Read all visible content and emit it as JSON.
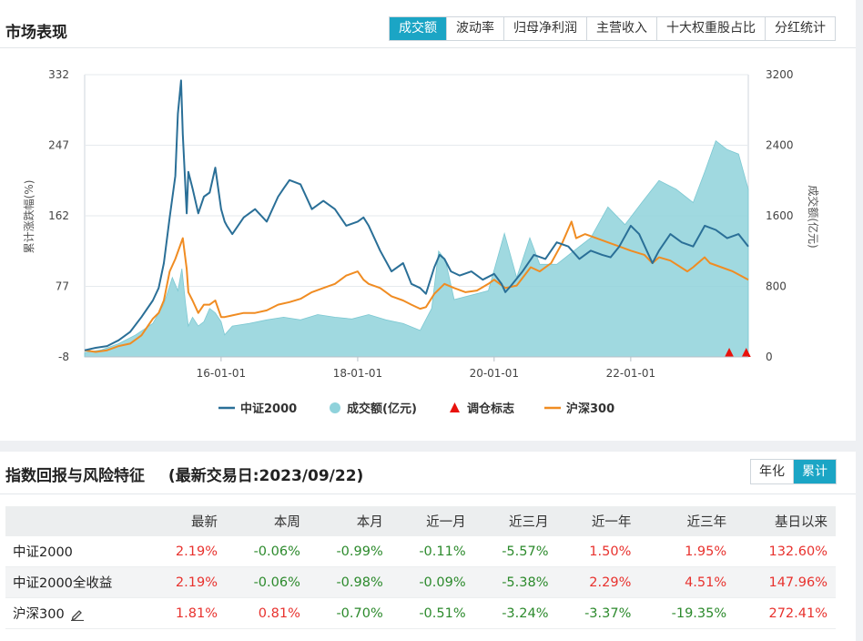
{
  "market": {
    "title": "市场表现",
    "tabs": [
      "成交额",
      "波动率",
      "归母净利润",
      "主营收入",
      "十大权重股占比",
      "分红统计"
    ],
    "active_tab": 0
  },
  "chart_data": {
    "type": "line",
    "xlabel": "",
    "ylabel_left": "累计涨跌幅(%)",
    "ylabel_right": "成交额(亿元)",
    "x_range": [
      "2014-01-01",
      "2023-09-22"
    ],
    "x_ticks": [
      "16-01-01",
      "18-01-01",
      "20-01-01",
      "22-01-01"
    ],
    "ylim_left": [
      -8,
      332
    ],
    "yticks_left": [
      -8,
      77,
      162,
      247,
      332
    ],
    "ylim_right": [
      0,
      3200
    ],
    "yticks_right": [
      0,
      800,
      1600,
      2400,
      3200
    ],
    "grid": true,
    "legend_position": "bottom",
    "legend": [
      "中证2000",
      "成交额(亿元)",
      "调仓标志",
      "沪深300"
    ],
    "colors": {
      "csi2000": "#2a6f97",
      "volume": "#8fd2db",
      "rebalance": "#e8120c",
      "hs300": "#f08c22"
    },
    "series": [
      {
        "name": "中证2000",
        "axis": "left",
        "x": [
          "2014-01-01",
          "2014-03-01",
          "2014-05-01",
          "2014-07-01",
          "2014-09-01",
          "2014-11-01",
          "2015-01-01",
          "2015-02-01",
          "2015-03-01",
          "2015-04-01",
          "2015-05-01",
          "2015-05-15",
          "2015-06-01",
          "2015-06-10",
          "2015-07-01",
          "2015-07-10",
          "2015-08-01",
          "2015-09-01",
          "2015-10-01",
          "2015-11-01",
          "2015-12-01",
          "2016-01-01",
          "2016-01-20",
          "2016-02-01",
          "2016-03-01",
          "2016-05-01",
          "2016-07-01",
          "2016-09-01",
          "2016-11-01",
          "2016-12-01",
          "2017-01-01",
          "2017-03-01",
          "2017-05-01",
          "2017-07-01",
          "2017-09-01",
          "2017-11-01",
          "2018-01-01",
          "2018-02-01",
          "2018-03-01",
          "2018-05-01",
          "2018-07-01",
          "2018-09-01",
          "2018-10-15",
          "2018-12-01",
          "2019-01-01",
          "2019-02-15",
          "2019-03-15",
          "2019-04-10",
          "2019-05-15",
          "2019-07-01",
          "2019-09-01",
          "2019-11-01",
          "2020-01-01",
          "2020-02-10",
          "2020-03-01",
          "2020-04-01",
          "2020-06-01",
          "2020-08-01",
          "2020-10-01",
          "2020-12-01",
          "2021-02-01",
          "2021-04-01",
          "2021-06-01",
          "2021-08-01",
          "2021-09-15",
          "2021-11-01",
          "2022-01-01",
          "2022-02-15",
          "2022-04-27",
          "2022-06-01",
          "2022-08-01",
          "2022-10-01",
          "2022-12-01",
          "2023-02-01",
          "2023-04-01",
          "2023-06-01",
          "2023-08-01",
          "2023-09-22"
        ],
        "values": [
          0,
          3,
          5,
          12,
          22,
          40,
          60,
          75,
          105,
          160,
          210,
          285,
          325,
          260,
          165,
          215,
          195,
          165,
          185,
          190,
          220,
          170,
          155,
          150,
          140,
          160,
          170,
          155,
          185,
          195,
          205,
          200,
          170,
          180,
          170,
          150,
          155,
          160,
          150,
          120,
          95,
          105,
          80,
          75,
          68,
          100,
          115,
          110,
          95,
          90,
          95,
          85,
          92,
          80,
          70,
          78,
          95,
          115,
          110,
          130,
          125,
          110,
          120,
          115,
          112,
          125,
          150,
          140,
          105,
          120,
          140,
          130,
          125,
          150,
          145,
          135,
          140,
          125
        ]
      },
      {
        "name": "沪深300",
        "axis": "left",
        "x": [
          "2014-01-01",
          "2014-03-01",
          "2014-05-01",
          "2014-07-01",
          "2014-09-01",
          "2014-11-01",
          "2015-01-01",
          "2015-02-01",
          "2015-03-01",
          "2015-04-01",
          "2015-05-01",
          "2015-06-10",
          "2015-07-01",
          "2015-07-10",
          "2015-08-01",
          "2015-09-01",
          "2015-10-01",
          "2015-11-01",
          "2015-12-01",
          "2016-01-01",
          "2016-01-20",
          "2016-03-01",
          "2016-05-01",
          "2016-07-01",
          "2016-09-01",
          "2016-11-01",
          "2017-01-01",
          "2017-03-01",
          "2017-05-01",
          "2017-07-01",
          "2017-09-01",
          "2017-11-01",
          "2018-01-01",
          "2018-02-01",
          "2018-03-01",
          "2018-05-01",
          "2018-07-01",
          "2018-09-01",
          "2018-10-15",
          "2018-12-01",
          "2019-01-01",
          "2019-02-15",
          "2019-04-10",
          "2019-06-01",
          "2019-08-01",
          "2019-10-01",
          "2019-12-01",
          "2020-01-01",
          "2020-03-01",
          "2020-05-01",
          "2020-07-15",
          "2020-09-01",
          "2020-11-01",
          "2021-01-01",
          "2021-02-18",
          "2021-03-15",
          "2021-05-01",
          "2021-07-01",
          "2021-09-01",
          "2021-11-01",
          "2022-01-01",
          "2022-03-15",
          "2022-04-27",
          "2022-06-01",
          "2022-08-01",
          "2022-10-31",
          "2022-12-01",
          "2023-01-31",
          "2023-03-01",
          "2023-05-01",
          "2023-07-01",
          "2023-09-22"
        ],
        "values": [
          0,
          -2,
          0,
          5,
          8,
          18,
          38,
          45,
          60,
          95,
          110,
          135,
          98,
          70,
          60,
          45,
          55,
          55,
          60,
          40,
          40,
          42,
          45,
          45,
          48,
          55,
          58,
          62,
          70,
          75,
          80,
          90,
          95,
          85,
          80,
          75,
          65,
          60,
          55,
          50,
          52,
          68,
          80,
          75,
          70,
          72,
          80,
          85,
          75,
          78,
          100,
          95,
          105,
          130,
          155,
          135,
          140,
          135,
          130,
          125,
          120,
          115,
          105,
          112,
          108,
          95,
          100,
          112,
          105,
          100,
          95,
          85
        ]
      },
      {
        "name": "成交额(亿元)",
        "axis": "right",
        "type": "area",
        "x": [
          "2014-01-01",
          "2014-04-01",
          "2014-07-01",
          "2014-10-01",
          "2015-01-01",
          "2015-03-01",
          "2015-04-15",
          "2015-05-15",
          "2015-06-05",
          "2015-06-25",
          "2015-07-10",
          "2015-08-01",
          "2015-09-01",
          "2015-10-01",
          "2015-11-01",
          "2015-12-01",
          "2016-01-01",
          "2016-01-20",
          "2016-03-01",
          "2016-06-01",
          "2016-09-01",
          "2016-12-01",
          "2017-03-01",
          "2017-06-01",
          "2017-09-01",
          "2017-12-01",
          "2018-03-01",
          "2018-06-01",
          "2018-09-01",
          "2018-12-01",
          "2019-02-01",
          "2019-03-10",
          "2019-04-15",
          "2019-06-01",
          "2019-09-01",
          "2019-12-01",
          "2020-02-25",
          "2020-05-01",
          "2020-07-10",
          "2020-09-01",
          "2020-12-01",
          "2021-03-01",
          "2021-06-01",
          "2021-09-01",
          "2021-12-01",
          "2022-03-01",
          "2022-06-01",
          "2022-09-01",
          "2022-12-01",
          "2023-02-01",
          "2023-04-01",
          "2023-06-01",
          "2023-08-01",
          "2023-09-22"
        ],
        "values": [
          50,
          80,
          150,
          250,
          380,
          600,
          900,
          750,
          1000,
          600,
          350,
          450,
          350,
          400,
          550,
          500,
          400,
          250,
          350,
          380,
          420,
          450,
          420,
          480,
          450,
          430,
          480,
          420,
          380,
          300,
          550,
          1200,
          1100,
          650,
          700,
          750,
          1400,
          900,
          1350,
          1050,
          1050,
          1200,
          1350,
          1700,
          1500,
          1750,
          2000,
          1900,
          1750,
          2100,
          2450,
          2350,
          2300,
          1900
        ]
      },
      {
        "name": "调仓标志",
        "type": "marker",
        "x": [
          "2023-06-12",
          "2023-09-11"
        ]
      }
    ]
  },
  "returns": {
    "title": "指数回报与风险特征",
    "subtitle": "(最新交易日:2023/09/22)",
    "toggle": [
      "年化",
      "累计"
    ],
    "toggle_active": 1,
    "columns": [
      "",
      "最新",
      "本周",
      "本月",
      "近一月",
      "近三月",
      "近一年",
      "近三年",
      "基日以来"
    ],
    "rows": [
      {
        "name": "中证2000",
        "values": [
          "2.19%",
          "-0.06%",
          "-0.99%",
          "-0.11%",
          "-5.57%",
          "1.50%",
          "1.95%",
          "132.60%"
        ]
      },
      {
        "name": "中证2000全收益",
        "values": [
          "2.19%",
          "-0.06%",
          "-0.98%",
          "-0.09%",
          "-5.38%",
          "2.29%",
          "4.51%",
          "147.96%"
        ]
      },
      {
        "name": "沪深300",
        "values": [
          "1.81%",
          "0.81%",
          "-0.70%",
          "-0.51%",
          "-3.24%",
          "-3.37%",
          "-19.35%",
          "272.41%"
        ]
      }
    ]
  }
}
